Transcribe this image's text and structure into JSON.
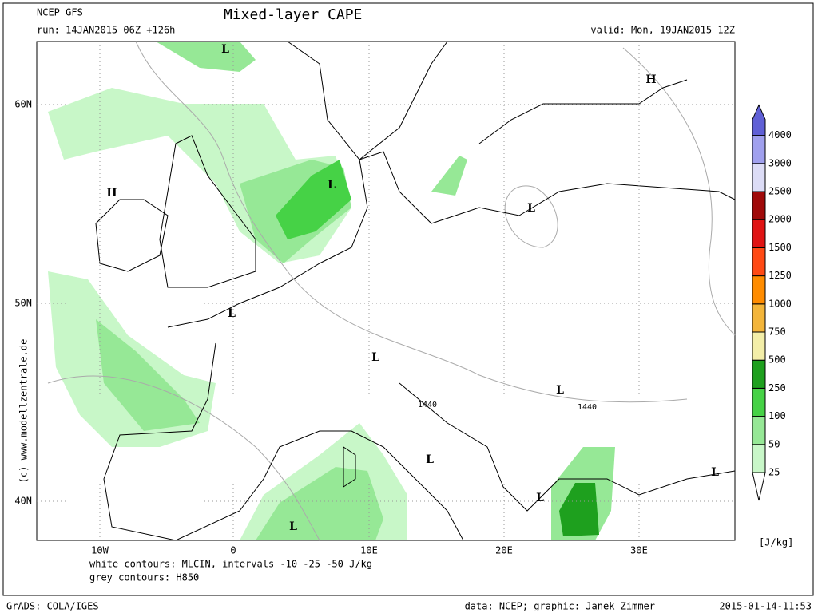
{
  "header": {
    "model": "NCEP GFS",
    "run": "run: 14JAN2015 06Z +126h",
    "title": "Mixed-layer CAPE",
    "valid": "valid: Mon, 19JAN2015 12Z"
  },
  "map": {
    "lat_labels": [
      "60N",
      "50N",
      "40N"
    ],
    "lon_labels": [
      "10W",
      "0",
      "10E",
      "20E",
      "30E"
    ],
    "pressure_centers": [
      "L",
      "H",
      "L",
      "H",
      "L",
      "L",
      "L",
      "L",
      "L",
      "L",
      "L",
      "L"
    ],
    "contour_labels": [
      "1440",
      "1440"
    ]
  },
  "colorbar": {
    "levels": [
      25,
      50,
      100,
      250,
      500,
      750,
      1000,
      1250,
      1500,
      2000,
      2500,
      3000,
      4000
    ],
    "colors": [
      "#c8f7c8",
      "#96e896",
      "#46d246",
      "#1ea01e",
      "#f3eea8",
      "#f3b53a",
      "#ff8c00",
      "#ff4a14",
      "#e01414",
      "#a00a0a",
      "#dcdcf6",
      "#a0a0ee",
      "#6060d6"
    ],
    "unit": "[J/kg]"
  },
  "side_label": "(c) www.modellzentrale.de",
  "notes": [
    "white contours: MLCIN, intervals -10 -25 -50 J/kg",
    "grey contours: H850"
  ],
  "footer": {
    "left": "GrADS: COLA/IGES",
    "center": "data: NCEP; graphic: Janek Zimmer",
    "right": "2015-01-14-11:53"
  }
}
